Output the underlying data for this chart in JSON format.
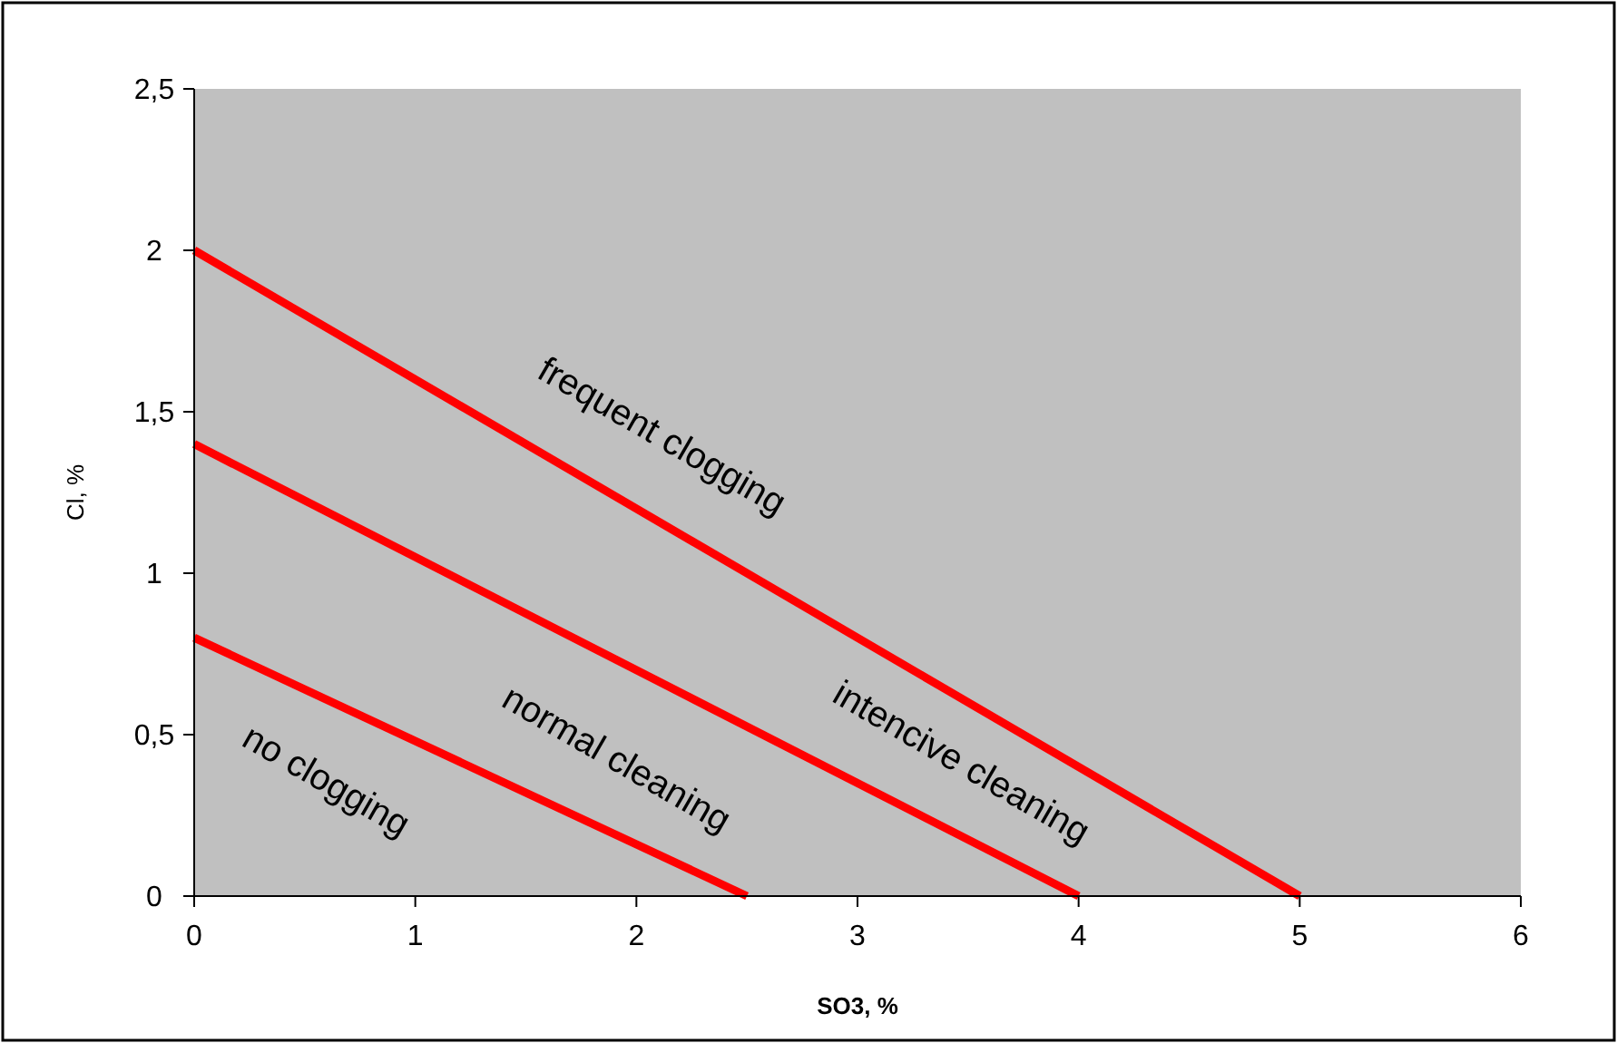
{
  "chart_data": {
    "type": "line",
    "xlabel": "SO3, %",
    "ylabel": "Cl, %",
    "xlim": [
      0,
      6
    ],
    "xticks": [
      0,
      1,
      2,
      3,
      4,
      5,
      6
    ],
    "ylim": [
      0,
      2.5
    ],
    "yticks": [
      0,
      {
        "value": 0.5,
        "label": "0,5"
      },
      1,
      {
        "value": 1.5,
        "label": "1,5"
      },
      2,
      {
        "value": 2.5,
        "label": "2,5"
      }
    ],
    "grid": false,
    "marker": "none",
    "line_style": "solid",
    "series": [
      {
        "color": "#ff0000",
        "x": [
          0,
          5
        ],
        "values": [
          2,
          0
        ]
      },
      {
        "color": "#ff0000",
        "x": [
          0,
          4
        ],
        "values": [
          1.4,
          0
        ]
      },
      {
        "color": "#ff0000",
        "x": [
          0,
          2.5
        ],
        "values": [
          0.8,
          0
        ]
      }
    ],
    "annotations": [
      "frequent clogging",
      "intencive cleaning",
      "normal cleaning",
      "no clogging"
    ]
  }
}
